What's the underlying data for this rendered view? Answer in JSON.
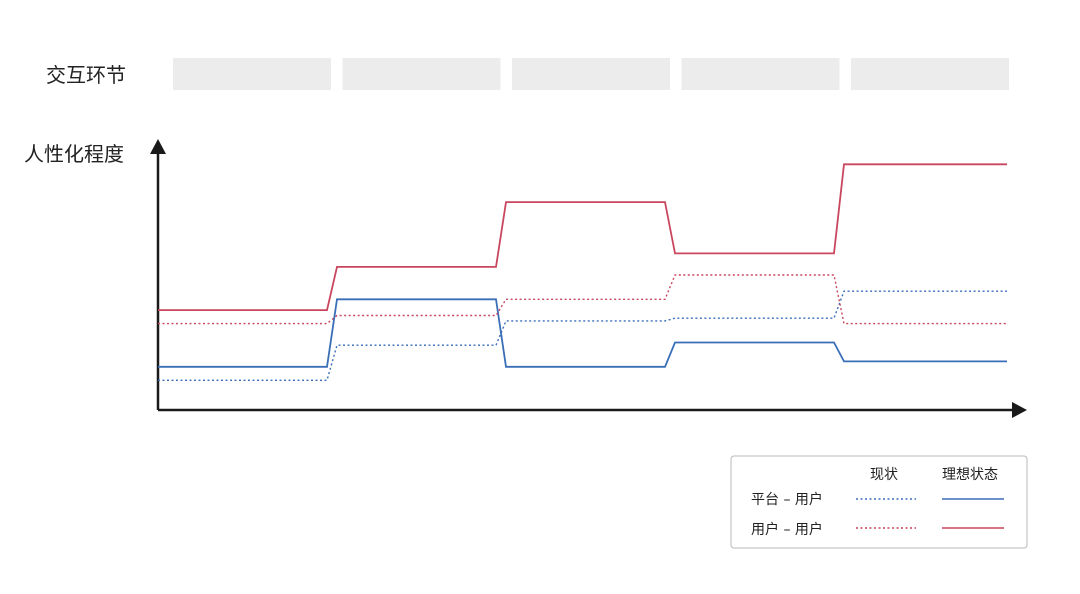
{
  "chart_data": {
    "type": "line",
    "row_label": "交互环节",
    "ylabel": "人性化程度",
    "categories": [
      "",
      "",
      "",
      "",
      ""
    ],
    "ylim": [
      0,
      10
    ],
    "series": [
      {
        "name": "平台 – 用户",
        "state": "理想状态",
        "style": "solid",
        "color": "#3a6fb8",
        "values": [
          1.6,
          4.1,
          1.6,
          2.5,
          1.8
        ]
      },
      {
        "name": "平台 – 用户",
        "state": "现状",
        "style": "dotted",
        "color": "#3a6fb8",
        "values": [
          1.1,
          2.4,
          3.3,
          3.4,
          4.4
        ]
      },
      {
        "name": "用户 – 用户",
        "state": "理想状态",
        "style": "solid",
        "color": "#c8475f",
        "values": [
          3.7,
          5.3,
          7.7,
          5.8,
          9.1
        ]
      },
      {
        "name": "用户 – 用户",
        "state": "现状",
        "style": "dotted",
        "color": "#c8475f",
        "values": [
          3.2,
          3.5,
          4.1,
          5.0,
          3.2
        ]
      }
    ],
    "grid": false,
    "legend": {
      "placement": "bottom-right",
      "columns": [
        "现状",
        "理想状态"
      ],
      "rows": [
        "平台 – 用户",
        "用户 – 用户"
      ]
    }
  },
  "colors": {
    "stage_box": "#ececec",
    "axis": "#1a1a1a",
    "blue": "#3a6fb8",
    "red": "#c8475f",
    "legend_border": "#b8b8b8"
  }
}
